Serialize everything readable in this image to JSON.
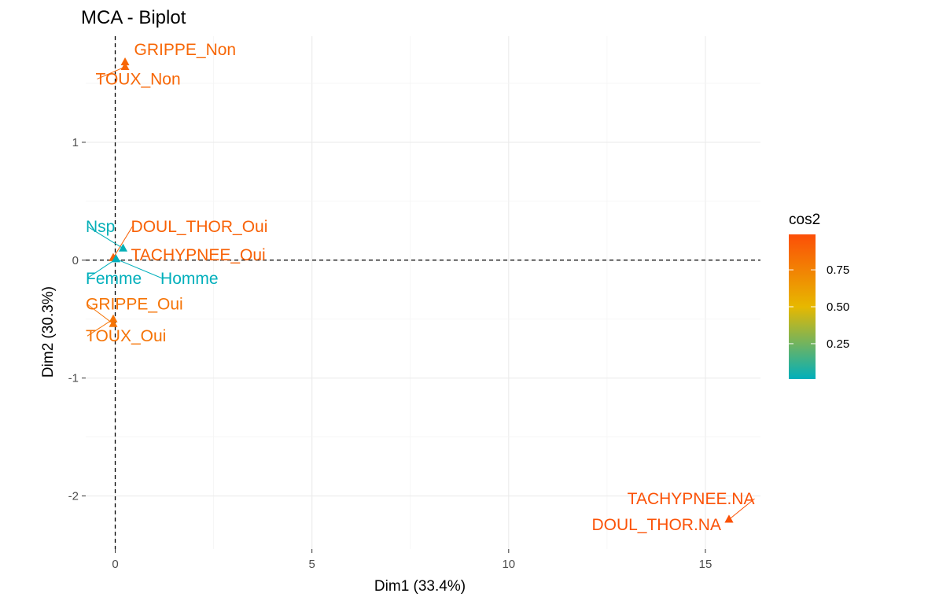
{
  "chart_data": {
    "type": "scatter",
    "title": "MCA - Biplot",
    "xlabel": "Dim1 (33.4%)",
    "ylabel": "Dim2 (30.3%)",
    "xlim": [
      -0.75,
      16.4
    ],
    "ylim": [
      -2.45,
      1.9
    ],
    "x_ticks": [
      0,
      5,
      10,
      15
    ],
    "y_ticks": [
      -2,
      -1,
      0,
      1
    ],
    "grid": true,
    "reference_lines": {
      "x": 0,
      "y": 0
    },
    "marker": "triangle",
    "points": [
      {
        "label": "GRIPPE_Non",
        "x": 0.25,
        "y": 1.68,
        "cos2": 0.88,
        "label_x": 0.48,
        "label_y": 1.74,
        "anchor": "start"
      },
      {
        "label": "TOUX_Non",
        "x": 0.25,
        "y": 1.64,
        "cos2": 0.88,
        "label_x": -0.5,
        "label_y": 1.49,
        "anchor": "start"
      },
      {
        "label": "DOUL_THOR_Oui",
        "x": -0.05,
        "y": 0.02,
        "cos2": 0.9,
        "label_x": 0.4,
        "label_y": 0.24,
        "anchor": "start"
      },
      {
        "label": "TACHYPNEE_Oui",
        "x": -0.05,
        "y": 0.02,
        "cos2": 0.9,
        "label_x": 0.4,
        "label_y": 0.0,
        "anchor": "start"
      },
      {
        "label": "Nsp",
        "x": 0.2,
        "y": 0.1,
        "cos2": 0.02,
        "label_x": -0.75,
        "label_y": 0.24,
        "anchor": "start"
      },
      {
        "label": "Femme",
        "x": 0.02,
        "y": 0.01,
        "cos2": 0.01,
        "label_x": -0.75,
        "label_y": -0.2,
        "anchor": "start"
      },
      {
        "label": "Homme",
        "x": 0.02,
        "y": 0.01,
        "cos2": 0.01,
        "label_x": 1.15,
        "label_y": -0.2,
        "anchor": "start"
      },
      {
        "label": "GRIPPE_Oui",
        "x": -0.05,
        "y": -0.54,
        "cos2": 0.82,
        "label_x": -0.75,
        "label_y": -0.42,
        "anchor": "start"
      },
      {
        "label": "TOUX_Oui",
        "x": -0.05,
        "y": -0.5,
        "cos2": 0.82,
        "label_x": -0.75,
        "label_y": -0.69,
        "anchor": "start"
      },
      {
        "label": "TACHYPNEE.NA",
        "x": 15.6,
        "y": -2.2,
        "cos2": 0.97,
        "label_x": 16.25,
        "label_y": -2.07,
        "anchor": "end"
      },
      {
        "label": "DOUL_THOR.NA",
        "x": 15.6,
        "y": -2.2,
        "cos2": 0.97,
        "label_x": 15.4,
        "label_y": -2.29,
        "anchor": "end"
      }
    ],
    "legend": {
      "title": "cos2",
      "placement": "right",
      "ticks": [
        "0.25",
        "0.50",
        "0.75"
      ],
      "tick_values": [
        0.25,
        0.5,
        0.75
      ],
      "range": [
        0.01,
        0.99
      ],
      "gradient": [
        "#00AFBB",
        "#E7B800",
        "#FC4E07"
      ]
    }
  }
}
